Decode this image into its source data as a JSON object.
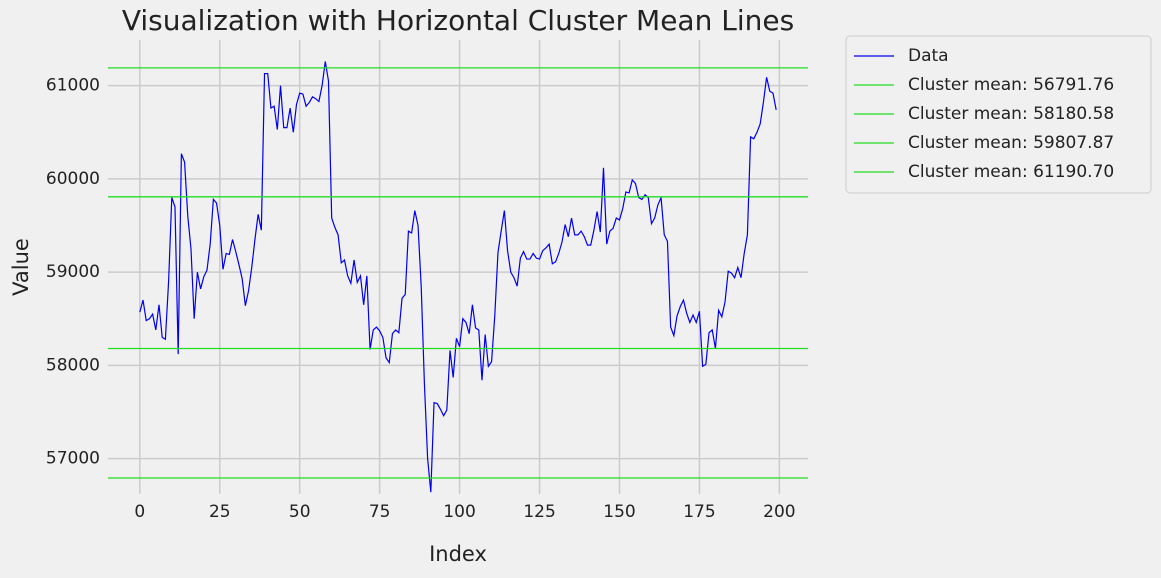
{
  "chart_data": {
    "type": "line",
    "title": "Visualization with Horizontal Cluster Mean Lines",
    "x_label": "Index",
    "y_label": "Value",
    "x": [
      0,
      1,
      2,
      3,
      4,
      5,
      6,
      7,
      8,
      9,
      10,
      11,
      12,
      13,
      14,
      15,
      16,
      17,
      18,
      19,
      20,
      21,
      22,
      23,
      24,
      25,
      26,
      27,
      28,
      29,
      30,
      31,
      32,
      33,
      34,
      35,
      36,
      37,
      38,
      39,
      40,
      41,
      42,
      43,
      44,
      45,
      46,
      47,
      48,
      49,
      50,
      51,
      52,
      53,
      54,
      55,
      56,
      57,
      58,
      59,
      60,
      61,
      62,
      63,
      64,
      65,
      66,
      67,
      68,
      69,
      70,
      71,
      72,
      73,
      74,
      75,
      76,
      77,
      78,
      79,
      80,
      81,
      82,
      83,
      84,
      85,
      86,
      87,
      88,
      89,
      90,
      91,
      92,
      93,
      94,
      95,
      96,
      97,
      98,
      99,
      100,
      101,
      102,
      103,
      104,
      105,
      106,
      107,
      108,
      109,
      110,
      111,
      112,
      113,
      114,
      115,
      116,
      117,
      118,
      119,
      120,
      121,
      122,
      123,
      124,
      125,
      126,
      127,
      128,
      129,
      130,
      131,
      132,
      133,
      134,
      135,
      136,
      137,
      138,
      139,
      140,
      141,
      142,
      143,
      144,
      145,
      146,
      147,
      148,
      149,
      150,
      151,
      152,
      153,
      154,
      155,
      156,
      157,
      158,
      159,
      160,
      161,
      162,
      163,
      164,
      165,
      166,
      167,
      168,
      169,
      170,
      171,
      172,
      173,
      174,
      175,
      176,
      177,
      178,
      179,
      180,
      181,
      182,
      183,
      184,
      185,
      186,
      187,
      188,
      189,
      190,
      191,
      192,
      193,
      194,
      195,
      196,
      197,
      198,
      199
    ],
    "series": [
      {
        "name": "Data",
        "color": "#0000ee",
        "values": [
          58570,
          58700,
          58480,
          58500,
          58550,
          58380,
          58650,
          58300,
          58280,
          58900,
          59800,
          59700,
          58120,
          60270,
          60180,
          59600,
          59250,
          58500,
          59000,
          58820,
          58950,
          59020,
          59300,
          59780,
          59740,
          59500,
          59030,
          59200,
          59190,
          59350,
          59220,
          59080,
          58930,
          58640,
          58800,
          59050,
          59350,
          59620,
          59450,
          61130,
          61130,
          60760,
          60780,
          60530,
          61000,
          60550,
          60550,
          60760,
          60500,
          60800,
          60920,
          60910,
          60780,
          60820,
          60880,
          60860,
          60830,
          61000,
          61260,
          61050,
          59580,
          59480,
          59400,
          59100,
          59130,
          58960,
          58880,
          59130,
          58890,
          58960,
          58650,
          58960,
          58170,
          58380,
          58410,
          58370,
          58300,
          58080,
          58030,
          58340,
          58380,
          58350,
          58720,
          58760,
          59440,
          59420,
          59660,
          59500,
          58840,
          57800,
          57000,
          56640,
          57600,
          57590,
          57530,
          57460,
          57520,
          58160,
          57870,
          58290,
          58200,
          58500,
          58460,
          58340,
          58650,
          58400,
          58380,
          57840,
          58330,
          57990,
          58040,
          58530,
          59210,
          59440,
          59660,
          59230,
          59000,
          58940,
          58850,
          59150,
          59220,
          59140,
          59140,
          59200,
          59150,
          59140,
          59230,
          59260,
          59300,
          59090,
          59110,
          59200,
          59320,
          59510,
          59380,
          59580,
          59400,
          59400,
          59440,
          59380,
          59290,
          59290,
          59450,
          59650,
          59430,
          60120,
          59300,
          59440,
          59470,
          59580,
          59560,
          59680,
          59860,
          59850,
          59990,
          59950,
          59800,
          59780,
          59830,
          59800,
          59520,
          59580,
          59720,
          59800,
          59400,
          59330,
          58410,
          58320,
          58530,
          58630,
          58700,
          58560,
          58460,
          58540,
          58460,
          58580,
          57990,
          58010,
          58350,
          58380,
          58180,
          58590,
          58520,
          58680,
          59010,
          58990,
          58940,
          59050,
          58940,
          59200,
          59400,
          60450,
          60430,
          60500,
          60590,
          60820,
          61090,
          60940,
          60920,
          60740
        ]
      }
    ],
    "hlines": [
      {
        "value": 56791.76,
        "label": "Cluster mean: 56791.76"
      },
      {
        "value": 58180.58,
        "label": "Cluster mean: 58180.58"
      },
      {
        "value": 59807.87,
        "label": "Cluster mean: 59807.87"
      },
      {
        "value": 61190.7,
        "label": "Cluster mean: 61190.70"
      }
    ],
    "hline_color": "#22dd22",
    "xlim": [
      -9.95,
      208.95
    ],
    "ylim": [
      56620,
      61490
    ],
    "xticks": [
      0,
      25,
      50,
      75,
      100,
      125,
      150,
      175,
      200
    ],
    "yticks": [
      57000,
      58000,
      59000,
      60000,
      61000
    ],
    "grid": true,
    "legend": "outside right"
  }
}
